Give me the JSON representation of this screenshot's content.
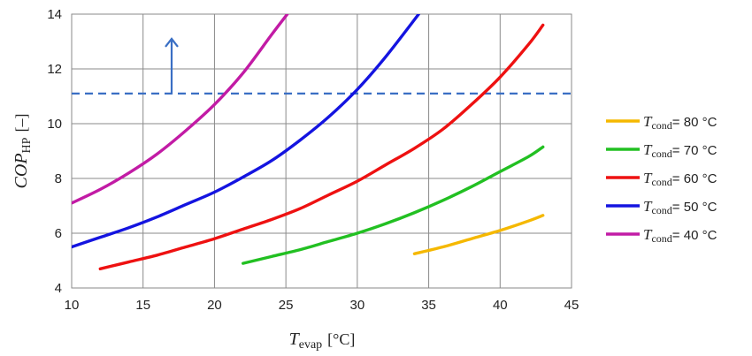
{
  "chart_data": {
    "type": "line",
    "xlabel": {
      "symbol": "T",
      "subscript": "evap",
      "unit": "[°C]"
    },
    "ylabel": {
      "symbol": "COP",
      "subscript": "HP",
      "unit": "[–]"
    },
    "xlim": [
      10,
      45
    ],
    "ylim": [
      4,
      14
    ],
    "xticks": [
      "10",
      "15",
      "20",
      "25",
      "30",
      "35",
      "40",
      "45"
    ],
    "yticks": [
      "4",
      "6",
      "8",
      "10",
      "12",
      "14"
    ],
    "grid": true,
    "legend_position": "right",
    "legend_label_prefix": "T",
    "legend_label_subscript": "cond",
    "series": [
      {
        "name": "= 80 °C",
        "color": "#f5b800",
        "x": [
          34,
          36,
          38,
          40,
          42,
          43
        ],
        "y": [
          5.25,
          5.5,
          5.8,
          6.1,
          6.45,
          6.65
        ]
      },
      {
        "name": "= 70 °C",
        "color": "#22c022",
        "x": [
          22,
          24,
          26,
          28,
          30,
          32,
          34,
          36,
          38,
          40,
          42,
          43
        ],
        "y": [
          4.9,
          5.15,
          5.4,
          5.7,
          6.0,
          6.35,
          6.75,
          7.2,
          7.7,
          8.25,
          8.8,
          9.15
        ]
      },
      {
        "name": "= 60 °C",
        "color": "#ee1111",
        "x": [
          12,
          14,
          16,
          18,
          20,
          22,
          24,
          26,
          28,
          30,
          32,
          34,
          36,
          38,
          40,
          42,
          43
        ],
        "y": [
          4.7,
          4.95,
          5.2,
          5.5,
          5.8,
          6.15,
          6.5,
          6.9,
          7.4,
          7.9,
          8.5,
          9.1,
          9.8,
          10.7,
          11.7,
          12.9,
          13.6
        ]
      },
      {
        "name": "= 50 °C",
        "color": "#1414e0",
        "x": [
          10,
          12,
          14,
          16,
          18,
          20,
          22,
          24,
          26,
          28,
          30,
          32,
          34.3
        ],
        "y": [
          5.5,
          5.85,
          6.2,
          6.6,
          7.05,
          7.5,
          8.05,
          8.65,
          9.4,
          10.25,
          11.25,
          12.45,
          14.0
        ]
      },
      {
        "name": "= 40 °C",
        "color": "#c21ba5",
        "x": [
          10,
          12,
          14,
          16,
          18,
          20,
          22,
          24,
          25.1
        ],
        "y": [
          7.1,
          7.6,
          8.2,
          8.9,
          9.75,
          10.7,
          11.85,
          13.25,
          14.0
        ]
      }
    ],
    "annotations": {
      "threshold_line": {
        "y": 11.1,
        "color": "#3a6fc4",
        "style": "dashed"
      },
      "arrow": {
        "x": 17,
        "y_from": 11.1,
        "y_to": 13.1,
        "color": "#3a6fc4"
      }
    }
  }
}
